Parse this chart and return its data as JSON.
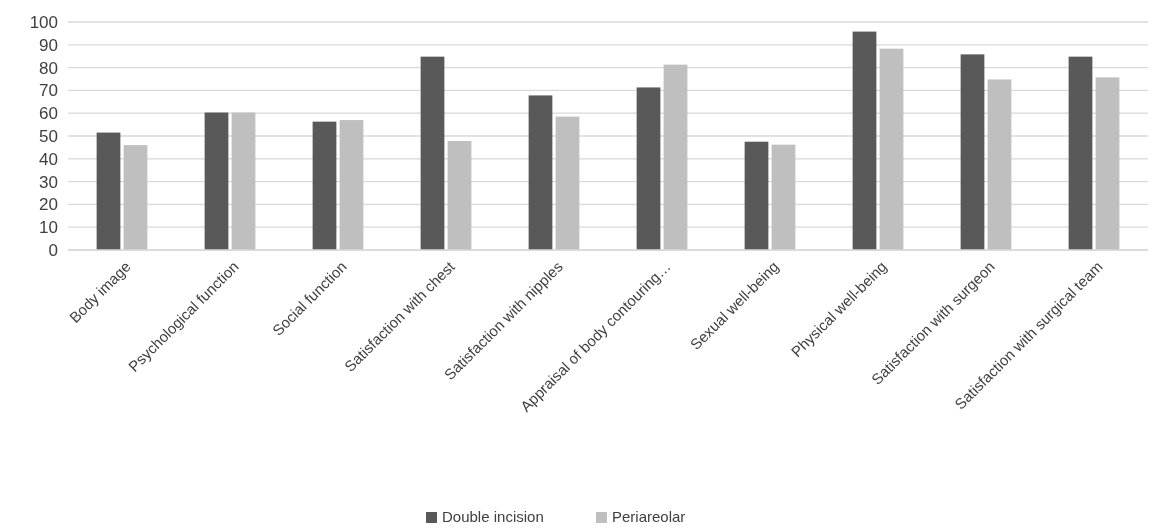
{
  "chart_data": {
    "type": "bar",
    "categories": [
      "Body image",
      "Psychological function",
      "Social function",
      "Satisfaction with chest",
      "Satisfaction with nipples",
      "Appraisal of body contouring…",
      "Sexual well-being",
      "Physical well-being",
      "Satisfaction with surgeon",
      "Satisfaction with surgical team"
    ],
    "series": [
      {
        "name": "Double incision",
        "color": "#595959",
        "values": [
          51.5,
          60.3,
          56.3,
          84.8,
          67.8,
          71.3,
          47.5,
          95.8,
          85.8,
          84.8
        ]
      },
      {
        "name": "Periareolar",
        "color": "#bfbfbf",
        "values": [
          46,
          60.3,
          57,
          47.8,
          58.5,
          81.3,
          46.2,
          88.3,
          74.8,
          75.7
        ]
      }
    ],
    "ylim": [
      0,
      100
    ],
    "yticks": [
      0,
      10,
      20,
      30,
      40,
      50,
      60,
      70,
      80,
      90,
      100
    ],
    "grid": "y",
    "legend": "bottom"
  }
}
